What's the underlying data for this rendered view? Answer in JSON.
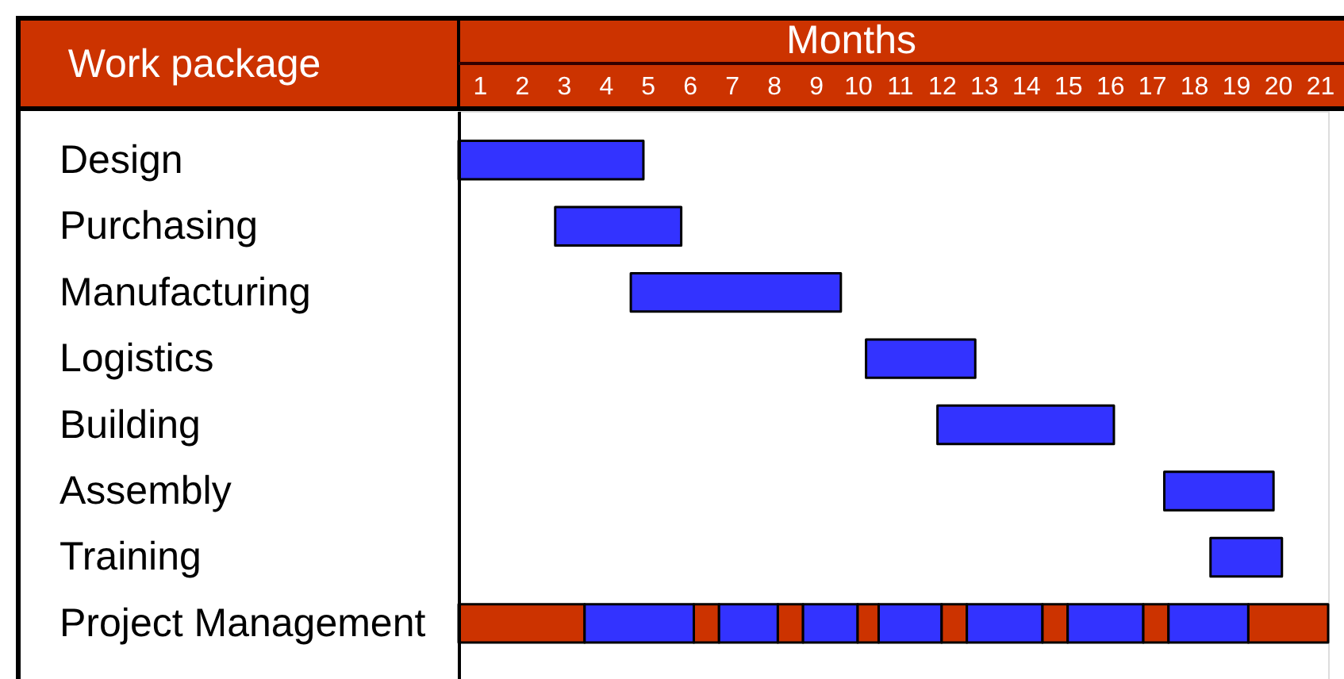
{
  "chart_data": {
    "type": "bar",
    "orientation": "horizontal",
    "xlabel": "Months",
    "ylabel": "Work package",
    "categories": [
      "Design",
      "Purchasing",
      "Manufacturing",
      "Logistics",
      "Building",
      "Assembly",
      "Training",
      "Project Management"
    ],
    "series": [
      {
        "color": "#3333ff",
        "base": [
          0.5,
          2.8,
          4.6,
          10.2,
          11.9,
          17.3,
          18.4,
          null
        ],
        "values": [
          4.4,
          3.0,
          5.0,
          2.6,
          4.2,
          2.6,
          1.7,
          null
        ]
      },
      {
        "color": "#cc3300",
        "base": [
          null,
          null,
          null,
          null,
          null,
          null,
          null,
          0.5
        ],
        "values": [
          null,
          null,
          null,
          null,
          null,
          null,
          null,
          3.0
        ]
      },
      {
        "color": "#3333ff",
        "base": [
          null,
          null,
          null,
          null,
          null,
          null,
          null,
          3.5
        ],
        "values": [
          null,
          null,
          null,
          null,
          null,
          null,
          null,
          2.6
        ]
      },
      {
        "color": "#cc3300",
        "base": [
          null,
          null,
          null,
          null,
          null,
          null,
          null,
          6.1
        ],
        "values": [
          null,
          null,
          null,
          null,
          null,
          null,
          null,
          0.6
        ]
      },
      {
        "color": "#3333ff",
        "base": [
          null,
          null,
          null,
          null,
          null,
          null,
          null,
          6.7
        ],
        "values": [
          null,
          null,
          null,
          null,
          null,
          null,
          null,
          1.4
        ]
      },
      {
        "color": "#cc3300",
        "base": [
          null,
          null,
          null,
          null,
          null,
          null,
          null,
          8.1
        ],
        "values": [
          null,
          null,
          null,
          null,
          null,
          null,
          null,
          0.6
        ]
      },
      {
        "color": "#3333ff",
        "base": [
          null,
          null,
          null,
          null,
          null,
          null,
          null,
          8.7
        ],
        "values": [
          null,
          null,
          null,
          null,
          null,
          null,
          null,
          1.3
        ]
      },
      {
        "color": "#cc3300",
        "base": [
          null,
          null,
          null,
          null,
          null,
          null,
          null,
          10.0
        ],
        "values": [
          null,
          null,
          null,
          null,
          null,
          null,
          null,
          0.5
        ]
      },
      {
        "color": "#3333ff",
        "base": [
          null,
          null,
          null,
          null,
          null,
          null,
          null,
          10.5
        ],
        "values": [
          null,
          null,
          null,
          null,
          null,
          null,
          null,
          1.5
        ]
      },
      {
        "color": "#cc3300",
        "base": [
          null,
          null,
          null,
          null,
          null,
          null,
          null,
          12.0
        ],
        "values": [
          null,
          null,
          null,
          null,
          null,
          null,
          null,
          0.6
        ]
      },
      {
        "color": "#3333ff",
        "base": [
          null,
          null,
          null,
          null,
          null,
          null,
          null,
          12.6
        ],
        "values": [
          null,
          null,
          null,
          null,
          null,
          null,
          null,
          1.8
        ]
      },
      {
        "color": "#cc3300",
        "base": [
          null,
          null,
          null,
          null,
          null,
          null,
          null,
          14.4
        ],
        "values": [
          null,
          null,
          null,
          null,
          null,
          null,
          null,
          0.6
        ]
      },
      {
        "color": "#3333ff",
        "base": [
          null,
          null,
          null,
          null,
          null,
          null,
          null,
          15.0
        ],
        "values": [
          null,
          null,
          null,
          null,
          null,
          null,
          null,
          1.8
        ]
      },
      {
        "color": "#cc3300",
        "base": [
          null,
          null,
          null,
          null,
          null,
          null,
          null,
          16.8
        ],
        "values": [
          null,
          null,
          null,
          null,
          null,
          null,
          null,
          0.6
        ]
      },
      {
        "color": "#3333ff",
        "base": [
          null,
          null,
          null,
          null,
          null,
          null,
          null,
          17.4
        ],
        "values": [
          null,
          null,
          null,
          null,
          null,
          null,
          null,
          1.9
        ]
      },
      {
        "color": "#cc3300",
        "base": [
          null,
          null,
          null,
          null,
          null,
          null,
          null,
          19.3
        ],
        "values": [
          null,
          null,
          null,
          null,
          null,
          null,
          null,
          1.9
        ]
      }
    ],
    "xlim": [
      0.5,
      21.2
    ],
    "xticks": [
      1,
      2,
      3,
      4,
      5,
      6,
      7,
      8,
      9,
      10,
      11,
      12,
      13,
      14,
      15,
      16,
      17,
      18,
      19,
      20,
      21
    ],
    "grid": false
  }
}
